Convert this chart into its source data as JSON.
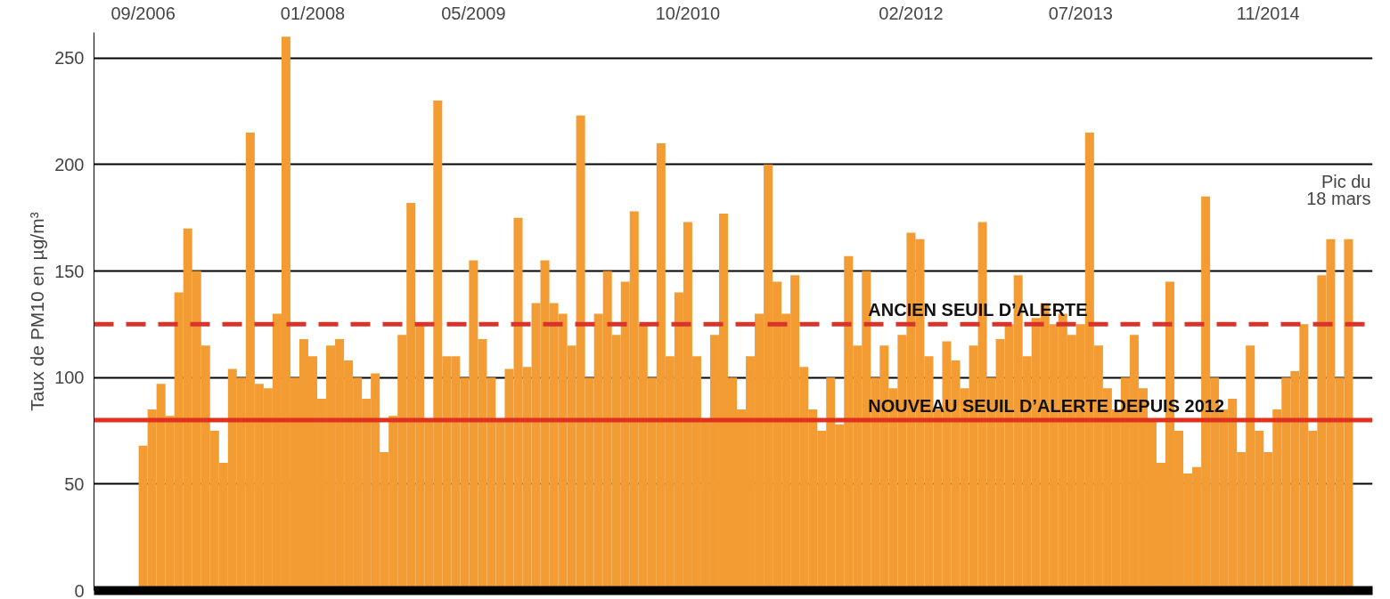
{
  "chart_data": {
    "type": "bar",
    "ylabel": "Taux de PM10 en µg/m³",
    "categories": [
      "09/2006",
      null,
      null,
      null,
      null,
      null,
      null,
      null,
      null,
      null,
      null,
      null,
      null,
      null,
      null,
      null,
      null,
      null,
      null,
      "01/2008",
      null,
      null,
      null,
      null,
      null,
      null,
      null,
      null,
      null,
      null,
      null,
      null,
      null,
      null,
      null,
      null,
      null,
      "05/2009",
      null,
      null,
      null,
      null,
      null,
      null,
      null,
      null,
      null,
      null,
      null,
      null,
      null,
      null,
      null,
      null,
      null,
      null,
      null,
      null,
      null,
      null,
      null,
      "10/2010",
      null,
      null,
      null,
      null,
      null,
      null,
      null,
      null,
      null,
      null,
      null,
      null,
      null,
      null,
      null,
      null,
      null,
      null,
      null,
      null,
      null,
      null,
      null,
      null,
      "02/2012",
      null,
      null,
      null,
      null,
      null,
      null,
      null,
      null,
      null,
      null,
      null,
      null,
      null,
      null,
      null,
      null,
      null,
      null,
      "07/2013",
      null,
      null,
      null,
      null,
      null,
      null,
      null,
      null,
      null,
      null,
      null,
      null,
      null,
      null,
      null,
      null,
      null,
      null,
      null,
      null,
      "11/2014",
      null,
      null,
      null,
      null,
      null,
      null,
      null,
      null,
      null
    ],
    "values": [
      68,
      85,
      97,
      82,
      140,
      170,
      150,
      115,
      75,
      60,
      104,
      100,
      215,
      97,
      95,
      130,
      260,
      100,
      118,
      110,
      90,
      115,
      118,
      108,
      100,
      90,
      102,
      65,
      82,
      120,
      182,
      125,
      80,
      230,
      110,
      110,
      100,
      155,
      118,
      100,
      80,
      104,
      175,
      105,
      135,
      155,
      135,
      130,
      115,
      223,
      100,
      130,
      150,
      120,
      145,
      178,
      125,
      100,
      210,
      110,
      140,
      173,
      110,
      80,
      120,
      177,
      100,
      85,
      110,
      130,
      200,
      145,
      130,
      148,
      105,
      85,
      75,
      100,
      78,
      157,
      115,
      150,
      100,
      115,
      95,
      120,
      168,
      165,
      110,
      85,
      117,
      108,
      95,
      115,
      173,
      100,
      118,
      125,
      148,
      110,
      128,
      135,
      125,
      130,
      120,
      125,
      215,
      115,
      95,
      85,
      100,
      120,
      95,
      80,
      60,
      145,
      75,
      55,
      58,
      185,
      100,
      85,
      90,
      65,
      115,
      75,
      65,
      85,
      100,
      103,
      125,
      75,
      148,
      165,
      100,
      165
    ],
    "color": "#f39c33",
    "ylim": [
      0,
      262
    ],
    "yticks": [
      0,
      50,
      100,
      150,
      200,
      250
    ],
    "grid": "y",
    "ref_lines": [
      {
        "axis": "y",
        "value": 125,
        "label": "ANCIEN SEUIL D’ALERTE",
        "color": "#d9342b",
        "line_style": "dashed"
      },
      {
        "axis": "y",
        "value": 80,
        "label": "NOUVEAU SEUIL D’ALERTE DEPUIS 2012",
        "color": "#e0301e",
        "line_style": "solid"
      }
    ],
    "annotations": [
      "Pic du\n18 mars"
    ]
  }
}
